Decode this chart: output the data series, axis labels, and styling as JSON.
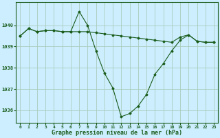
{
  "title": "Graphe pression niveau de la mer (hPa)",
  "background_color": "#cceeff",
  "grid_color": "#aaccbb",
  "line_color": "#1a5c1a",
  "marker_color": "#1a5c1a",
  "x_values": [
    0,
    1,
    2,
    3,
    4,
    5,
    6,
    7,
    8,
    9,
    10,
    11,
    12,
    13,
    14,
    15,
    16,
    17,
    18,
    19,
    20,
    21,
    22,
    23
  ],
  "series1": [
    1039.5,
    1039.85,
    1039.7,
    1039.75,
    1039.75,
    1039.7,
    1039.7,
    1039.7,
    1039.7,
    1039.65,
    1039.6,
    1039.55,
    1039.5,
    1039.45,
    1039.4,
    1039.35,
    1039.3,
    1039.25,
    1039.2,
    1039.45,
    1039.55,
    1039.25,
    1039.2,
    1039.2
  ],
  "series2": [
    1039.5,
    1039.85,
    1039.7,
    1039.75,
    1039.75,
    1039.7,
    1039.7,
    1040.65,
    1040.0,
    1038.8,
    1037.75,
    1037.05,
    1035.7,
    1035.85,
    1036.2,
    1036.75,
    1037.7,
    1038.2,
    1038.8,
    1039.3,
    1039.55,
    1039.25,
    1039.2,
    1039.2
  ],
  "ylim": [
    1035.4,
    1041.1
  ],
  "yticks": [
    1036,
    1037,
    1038,
    1039,
    1040
  ],
  "xlim": [
    -0.5,
    23.5
  ]
}
